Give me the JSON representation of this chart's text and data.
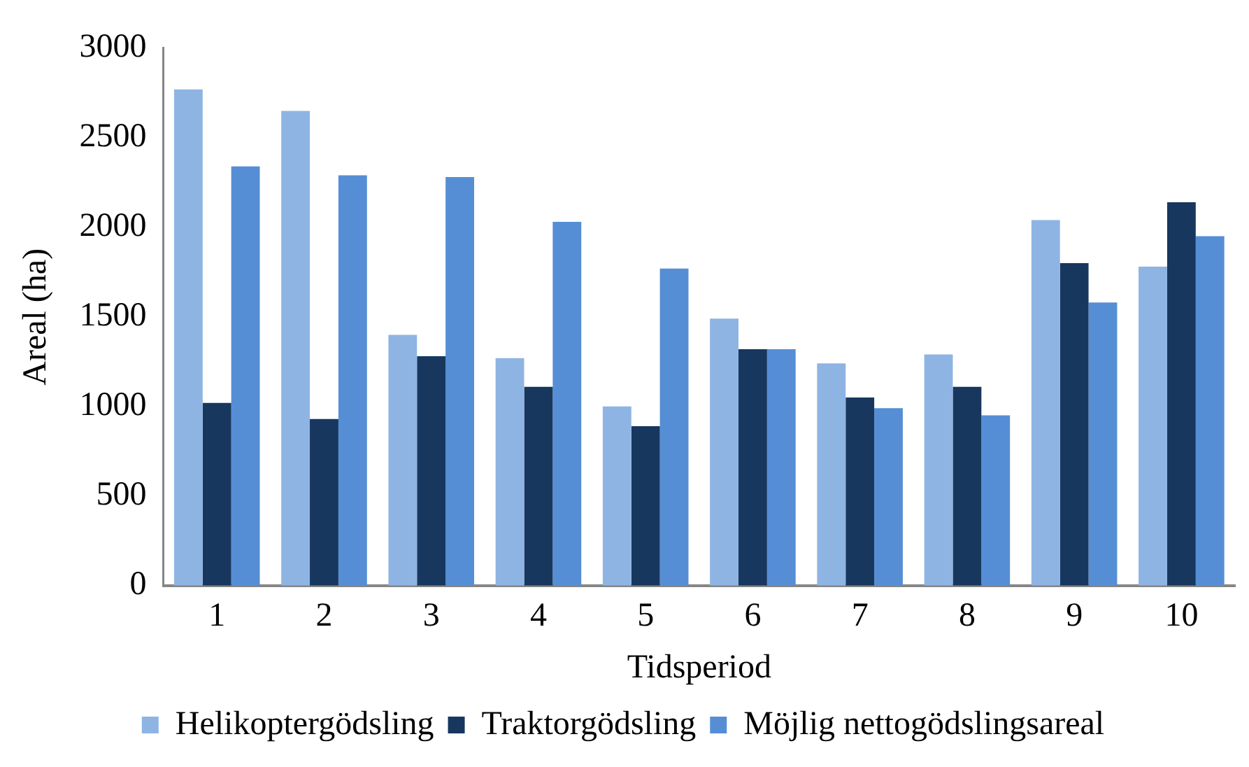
{
  "chart_data": {
    "type": "bar",
    "xlabel": "Tidsperiod",
    "ylabel": "Areal (ha)",
    "categories": [
      "1",
      "2",
      "3",
      "4",
      "5",
      "6",
      "7",
      "8",
      "9",
      "10"
    ],
    "series": [
      {
        "name": "Helikoptergödsling",
        "color": "#8eb4e3",
        "values": [
          2770,
          2650,
          1400,
          1270,
          1000,
          1490,
          1240,
          1290,
          2040,
          1780
        ]
      },
      {
        "name": "Traktorgödsling",
        "color": "#17375e",
        "values": [
          1020,
          930,
          1280,
          1110,
          890,
          1320,
          1050,
          1110,
          1800,
          2140
        ]
      },
      {
        "name": "Möjlig nettogödslingsareal",
        "color": "#558ed5",
        "values": [
          2340,
          2290,
          2280,
          2030,
          1770,
          1320,
          990,
          950,
          1580,
          1950
        ]
      }
    ],
    "ylim": [
      0,
      3000
    ],
    "yticks": [
      0,
      500,
      1000,
      1500,
      2000,
      2500,
      3000
    ],
    "grid": false,
    "legend": "bottom"
  }
}
